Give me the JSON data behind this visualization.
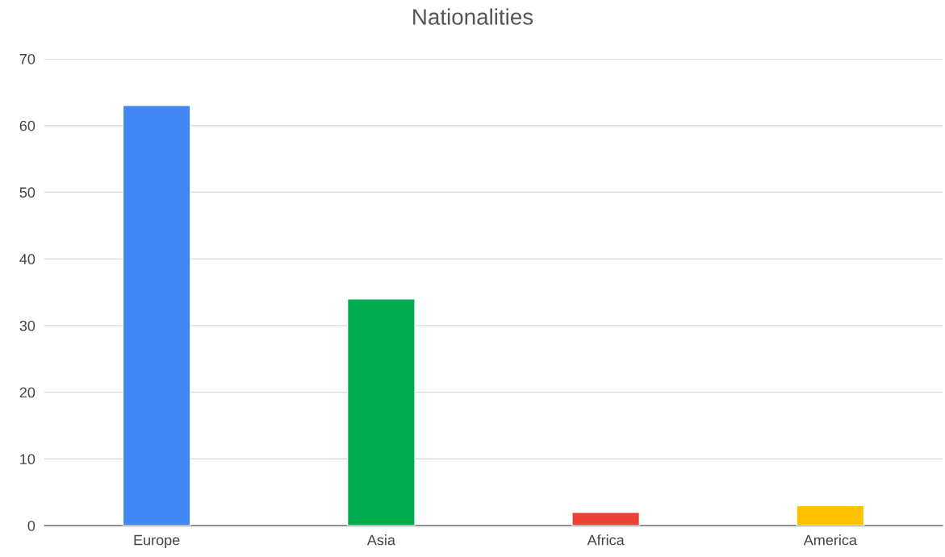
{
  "chart_data": {
    "type": "bar",
    "title": "Nationalities",
    "categories": [
      "Europe",
      "Asia",
      "Africa",
      "America"
    ],
    "values": [
      63,
      34,
      2,
      3
    ],
    "colors": [
      "#4285f4",
      "#00ad4e",
      "#ea4335",
      "#ffc000"
    ],
    "ylim": [
      0,
      70
    ],
    "yticks": [
      0,
      10,
      20,
      30,
      40,
      50,
      60,
      70
    ],
    "grid": "y",
    "legend": false
  }
}
